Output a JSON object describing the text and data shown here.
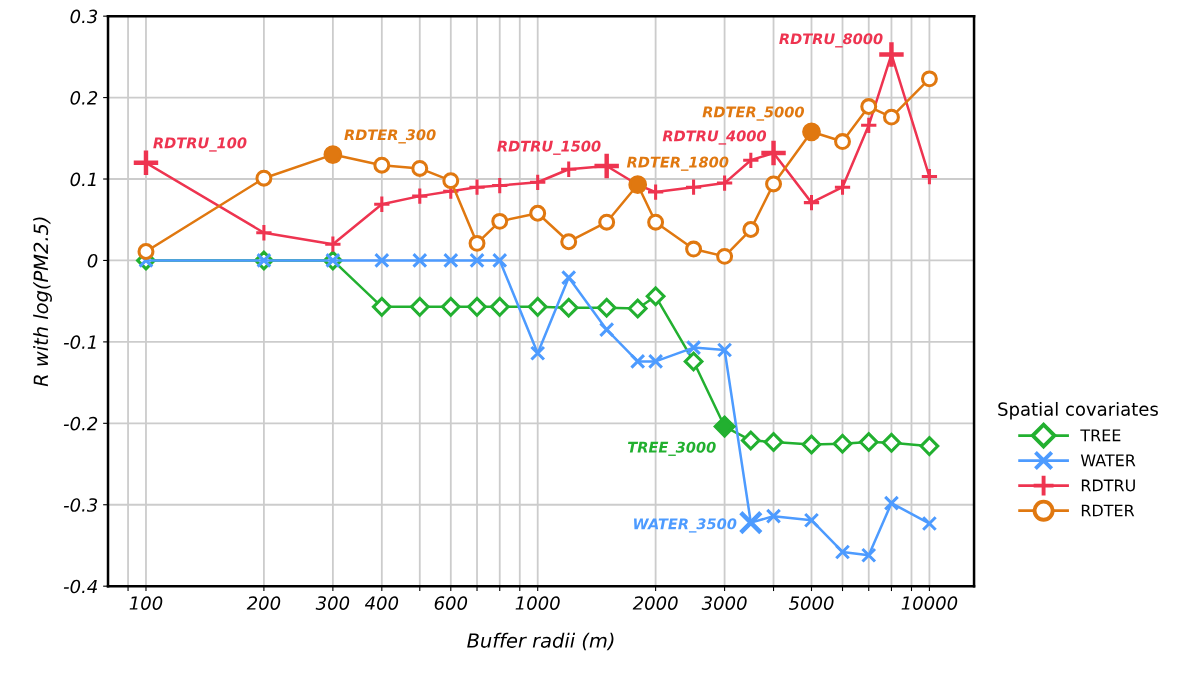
{
  "chart_data": {
    "type": "line",
    "xlabel": "Buffer radii (m)",
    "ylabel": "R with log(PM2.5)",
    "legend_title": "Spatial covariates",
    "legend": "right",
    "grid": true,
    "log": "x",
    "x": [
      100,
      200,
      300,
      400,
      500,
      600,
      700,
      800,
      1000,
      1200,
      1500,
      1800,
      2000,
      2500,
      3000,
      3500,
      4000,
      5000,
      6000,
      7000,
      8000,
      10000
    ],
    "xlim": [
      80,
      13000
    ],
    "xticks": [
      {
        "value": 90,
        "label": null
      },
      100,
      200,
      300,
      400,
      {
        "value": 500,
        "label": null
      },
      600,
      {
        "value": 700,
        "label": null
      },
      {
        "value": 800,
        "label": null
      },
      {
        "value": 900,
        "label": null
      },
      1000,
      2000,
      3000,
      {
        "value": 4000,
        "label": null
      },
      5000,
      {
        "value": 6000,
        "label": null
      },
      {
        "value": 7000,
        "label": null
      },
      {
        "value": 8000,
        "label": null
      },
      {
        "value": 9000,
        "label": null
      },
      10000
    ],
    "ylim": [
      -0.4,
      0.3
    ],
    "yticks": [
      -0.4,
      -0.3,
      -0.2,
      -0.1,
      0,
      0.1,
      0.2,
      0.3
    ],
    "series": [
      {
        "name": "TREE",
        "color": "#22b030",
        "marker": "diamond",
        "values": [
          0,
          0,
          0,
          -0.057,
          -0.057,
          -0.057,
          -0.057,
          -0.057,
          -0.057,
          -0.058,
          -0.058,
          -0.059,
          -0.044,
          -0.124,
          -0.204,
          -0.221,
          -0.223,
          -0.226,
          -0.225,
          -0.223,
          -0.224,
          -0.228
        ]
      },
      {
        "name": "WATER",
        "color": "#4d9bff",
        "marker": "cross",
        "values": [
          0,
          0,
          0,
          0,
          0,
          0,
          0,
          0,
          -0.114,
          -0.021,
          -0.085,
          -0.124,
          -0.124,
          -0.107,
          -0.11,
          -0.322,
          -0.314,
          -0.319,
          -0.358,
          -0.362,
          -0.298,
          -0.323
        ]
      },
      {
        "name": "RDTRU",
        "color": "#ee3450",
        "marker": "plus",
        "values": [
          0.12,
          0.034,
          0.02,
          0.069,
          0.079,
          0.085,
          0.09,
          0.092,
          0.096,
          0.112,
          0.116,
          0.093,
          0.084,
          0.09,
          0.095,
          0.123,
          0.132,
          0.071,
          0.09,
          0.166,
          0.253,
          0.103
        ]
      },
      {
        "name": "RDTER",
        "color": "#e07810",
        "marker": "circle",
        "values": [
          0.011,
          0.101,
          0.13,
          0.117,
          0.113,
          0.098,
          0.021,
          0.048,
          0.058,
          0.023,
          0.047,
          0.093,
          0.047,
          0.014,
          0.005,
          0.038,
          0.094,
          0.158,
          0.146,
          0.189,
          0.176,
          0.223
        ]
      }
    ],
    "annotations": [
      {
        "text": "RDTRU_100",
        "x": 100,
        "y": 0.12
      },
      {
        "text": "RDTER_300",
        "x": 300,
        "y": 0.13
      },
      {
        "text": "RDTRU_1500",
        "x": 1500,
        "y": 0.116
      },
      {
        "text": "RDTER_1800",
        "x": 1800,
        "y": 0.093
      },
      {
        "text": "RDTRU_4000",
        "x": 4000,
        "y": 0.132
      },
      {
        "text": "RDTER_5000",
        "x": 5000,
        "y": 0.158
      },
      {
        "text": "RDTRU_8000",
        "x": 8000,
        "y": 0.253
      },
      {
        "text": "TREE_3000",
        "x": 3000,
        "y": -0.204
      },
      {
        "text": "WATER_3500",
        "x": 3500,
        "y": -0.322
      }
    ]
  }
}
